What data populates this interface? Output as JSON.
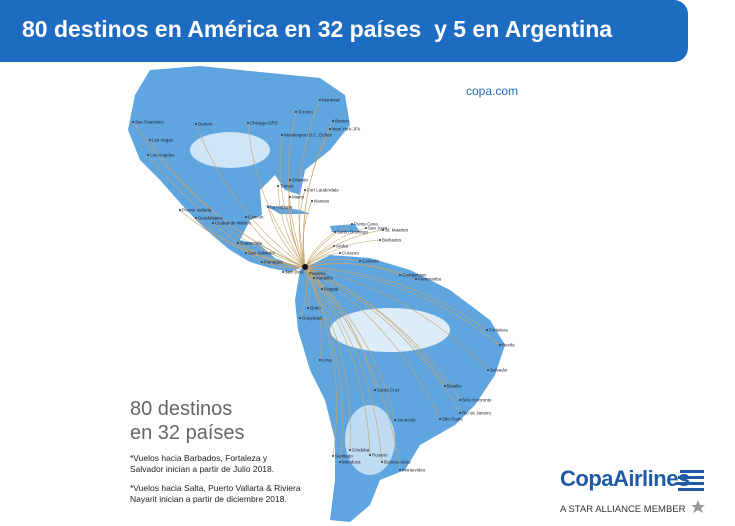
{
  "header": {
    "title": "80 destinos en América en 32 países  y 5 en Argentina"
  },
  "website": "copa.com",
  "summary": {
    "lines": [
      "80 destinos",
      "en 32 países"
    ]
  },
  "notes": [
    [
      "*Vuelos hacia Barbados, Fortaleza y",
      "Salvador inician a partir de Julio 2018."
    ],
    [
      "*Vuelos hacia Salta, Puerto Vallarta & Riviera",
      "Nayarit inician a partir de diciembre 2018."
    ]
  ],
  "logo": {
    "name": "CopaAirlines",
    "tagline": "A STAR ALLIANCE MEMBER"
  },
  "map": {
    "hub": "Panamá",
    "cities": [
      "Montreal",
      "Toronto",
      "Boston",
      "New York-JFK",
      "Chicago-ORD",
      "Washington D.C. Dulles",
      "Denver",
      "San Francisco",
      "Las Vegas",
      "Los Angeles",
      "Orlando",
      "Tampa",
      "Fort Lauderdale",
      "Miami",
      "Nassau",
      "La Habana",
      "Cancún",
      "Puerto Vallarta",
      "Guadalajara",
      "Ciudad de México",
      "Guatemala",
      "San Salvador",
      "Managua",
      "San José",
      "Santo Domingo",
      "Punta Cana",
      "San Juan",
      "St. Maarten",
      "Barbados",
      "Aruba",
      "Curazao",
      "Caracas",
      "Medellín",
      "Bogotá",
      "Quito",
      "Guayaquil",
      "Lima",
      "Georgetown",
      "Paramaribo",
      "Fortaleza",
      "Recife",
      "Salvador",
      "Brasilia",
      "Santa Cruz",
      "Belo Horizonte",
      "Rio de Janeiro",
      "São Paulo",
      "Asunción",
      "Córdoba",
      "Mendoza",
      "Santiago",
      "Rosario",
      "Buenos Aires",
      "Montevideo"
    ]
  }
}
